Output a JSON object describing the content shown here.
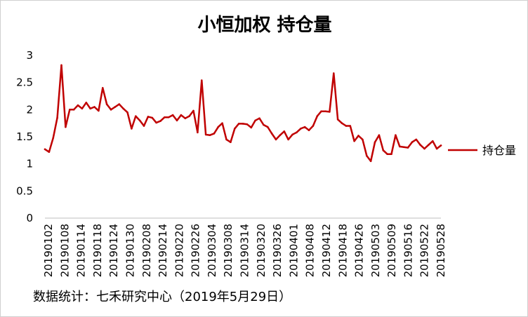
{
  "chart_data": {
    "type": "line",
    "title": "小恒加权 持仓量",
    "xlabel": "",
    "ylabel": "",
    "ylim": [
      0,
      3
    ],
    "yticks": [
      "0",
      "0.5",
      "1",
      "1.5",
      "2",
      "2.5",
      "3"
    ],
    "grid": false,
    "legend_position": "right",
    "x_tick_labels": [
      "20190102",
      "20190108",
      "20190114",
      "20190118",
      "20190124",
      "20190130",
      "20190208",
      "20190214",
      "20190220",
      "20190226",
      "20190304",
      "20190308",
      "20190314",
      "20190320",
      "20190326",
      "20190401",
      "20190408",
      "20190412",
      "20190418",
      "20190426",
      "20190503",
      "20190509",
      "20190516",
      "20190522",
      "20190528"
    ],
    "series": [
      {
        "name": "持仓量",
        "color": "#c00000",
        "values": [
          1.27,
          1.22,
          1.48,
          1.85,
          2.82,
          1.68,
          2.0,
          2.0,
          2.08,
          2.02,
          2.13,
          2.02,
          2.05,
          1.98,
          2.4,
          2.1,
          2.0,
          2.05,
          2.1,
          2.02,
          1.95,
          1.65,
          1.88,
          1.8,
          1.7,
          1.87,
          1.85,
          1.76,
          1.79,
          1.86,
          1.86,
          1.9,
          1.8,
          1.9,
          1.84,
          1.88,
          1.98,
          1.58,
          2.54,
          1.54,
          1.53,
          1.56,
          1.68,
          1.75,
          1.45,
          1.4,
          1.65,
          1.74,
          1.74,
          1.73,
          1.67,
          1.8,
          1.84,
          1.72,
          1.68,
          1.56,
          1.45,
          1.53,
          1.6,
          1.45,
          1.54,
          1.58,
          1.65,
          1.68,
          1.62,
          1.7,
          1.88,
          1.97,
          1.97,
          1.96,
          2.67,
          1.82,
          1.75,
          1.7,
          1.7,
          1.42,
          1.52,
          1.45,
          1.15,
          1.05,
          1.4,
          1.53,
          1.25,
          1.18,
          1.18,
          1.53,
          1.32,
          1.31,
          1.3,
          1.4,
          1.45,
          1.35,
          1.28,
          1.35,
          1.42,
          1.28,
          1.34
        ]
      }
    ]
  },
  "source": "数据统计：七禾研究中心（2019年5月29日）"
}
